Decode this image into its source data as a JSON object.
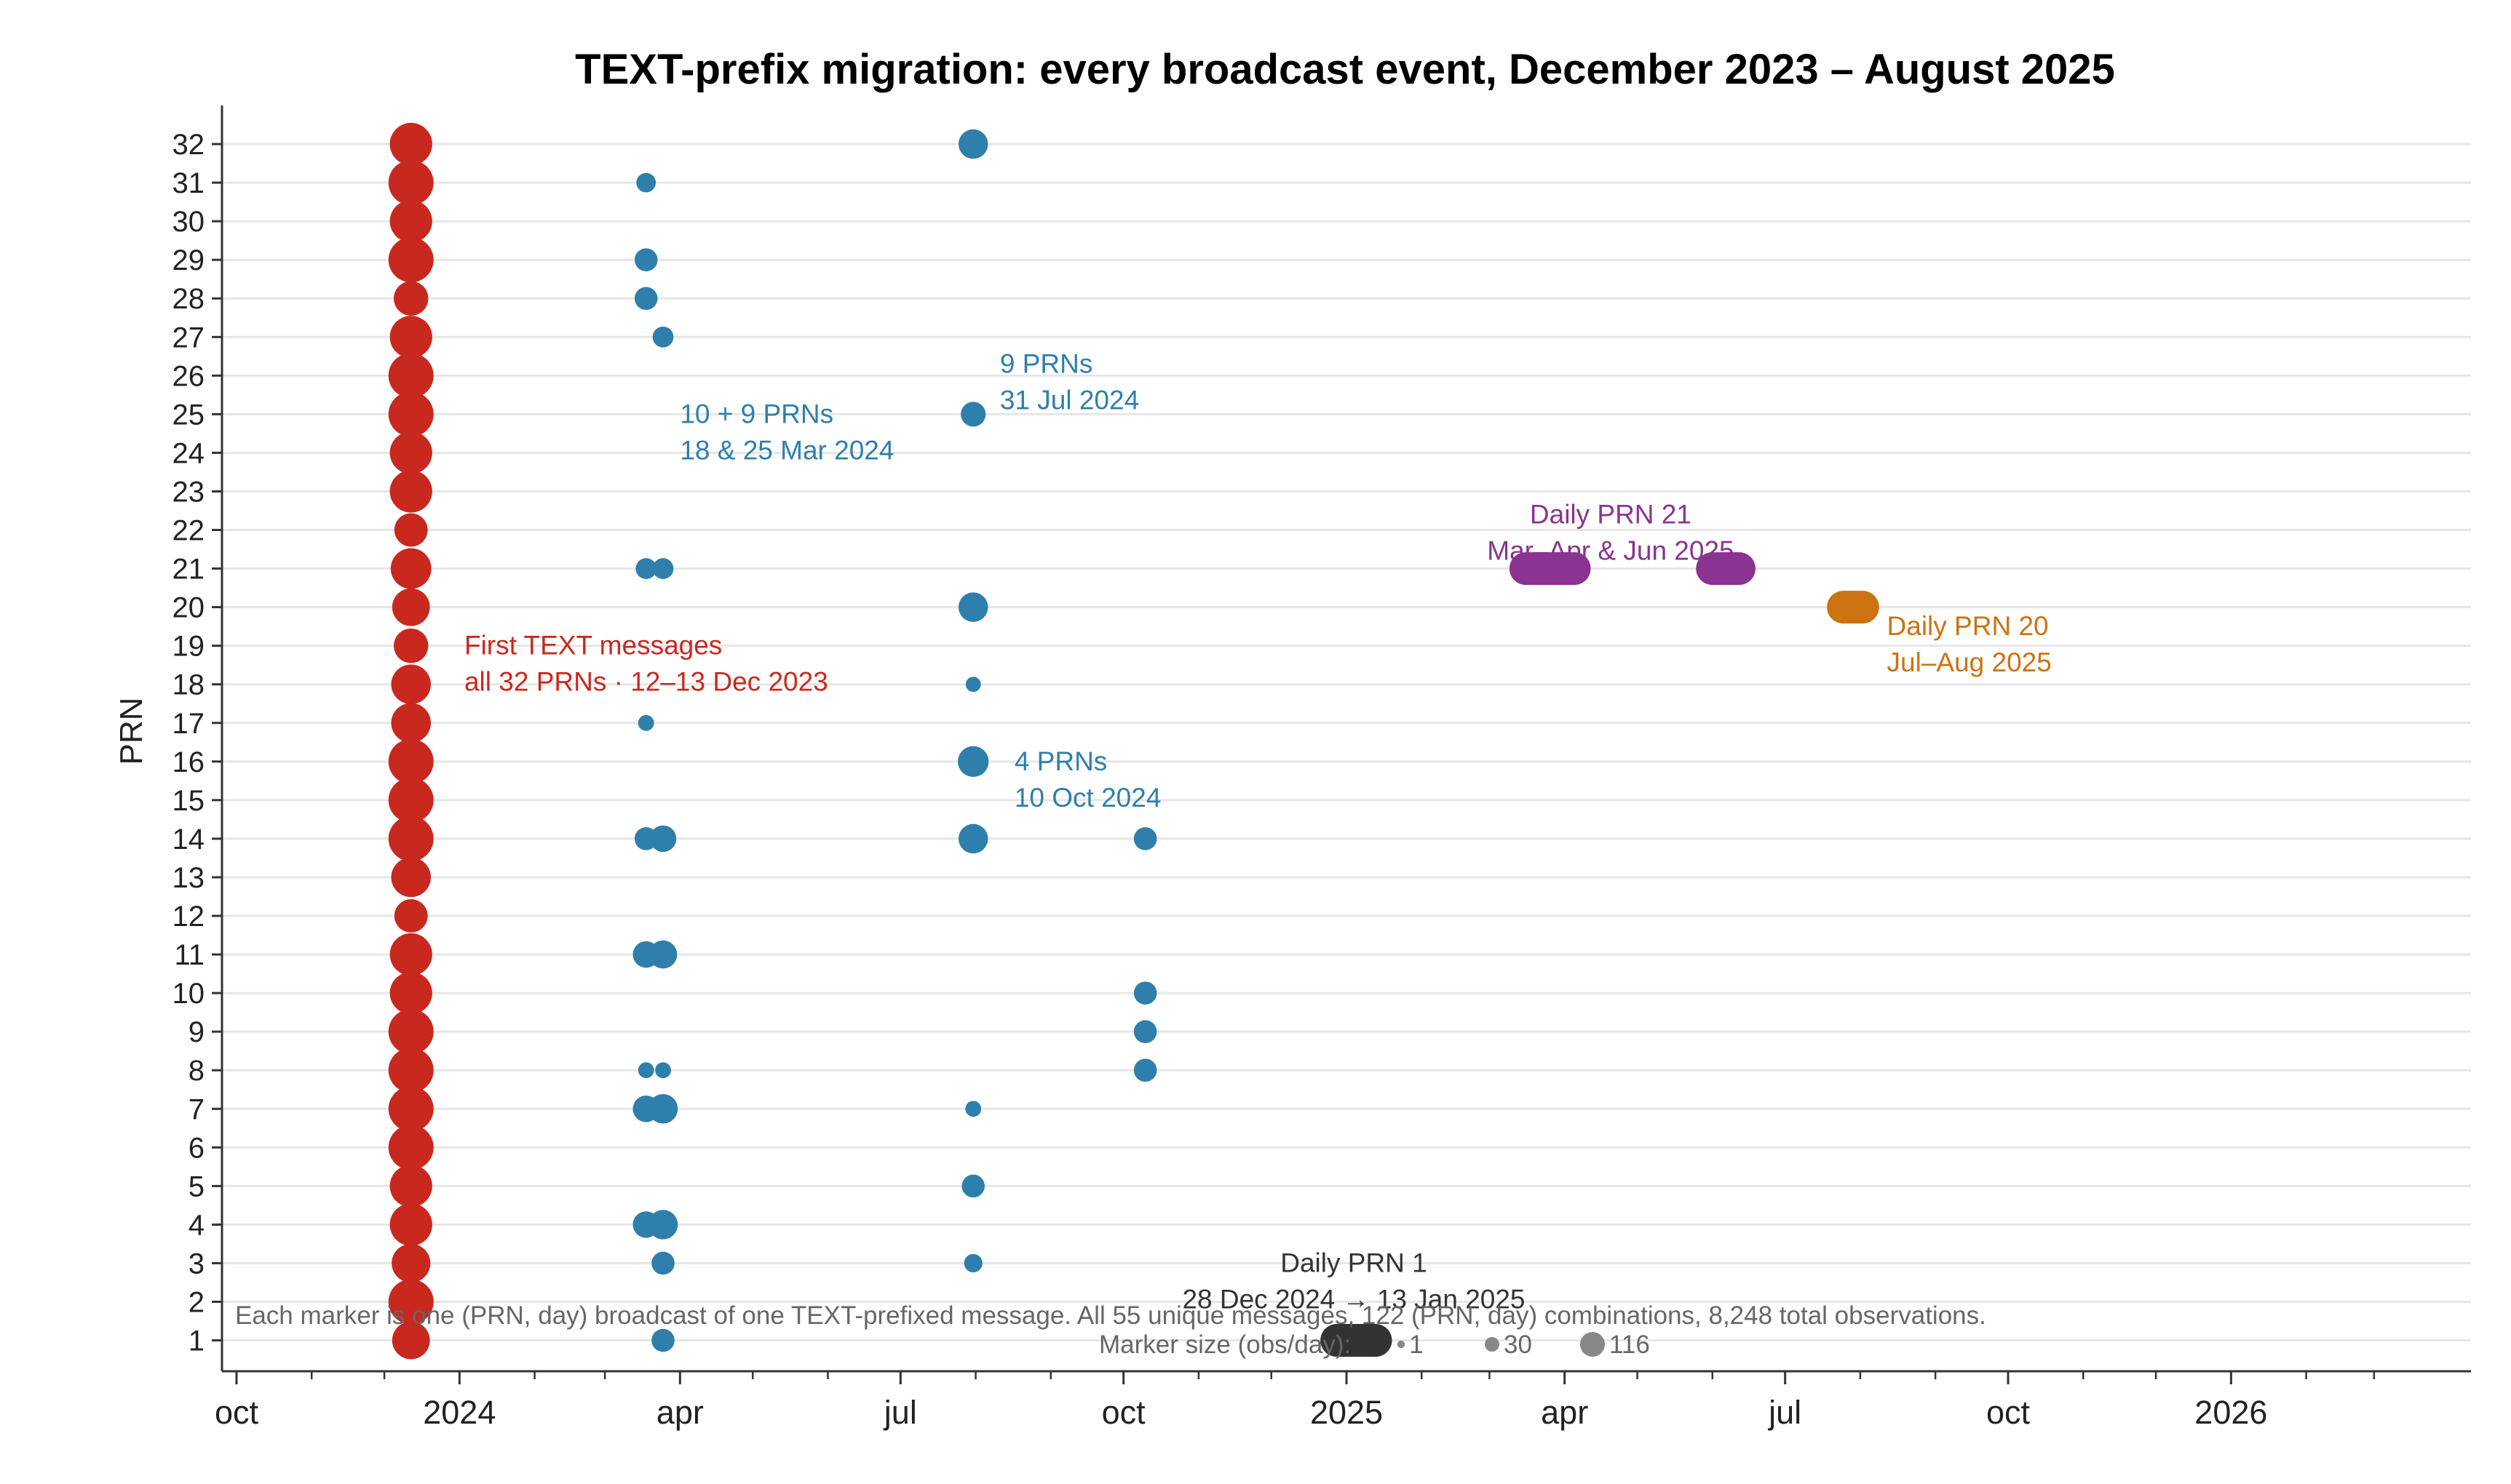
{
  "colors": {
    "initial": "#c9281f",
    "broadcast": "#2e7fab",
    "prn21": "#8a3390",
    "prn20": "#cc7210",
    "prn1": "#333333",
    "grid": "#e6e6e6",
    "axis": "#333333",
    "legend_marker": "#888888"
  },
  "chart_data": {
    "type": "scatter",
    "title": "TEXT-prefix migration: every broadcast event, December 2023 – August 2025",
    "xlabel": "",
    "ylabel": "PRN",
    "xlim": [
      "2023-09-25",
      "2026-04-10"
    ],
    "ylim": [
      0.2,
      33
    ],
    "y_ticks": [
      1,
      2,
      3,
      4,
      5,
      6,
      7,
      8,
      9,
      10,
      11,
      12,
      13,
      14,
      15,
      16,
      17,
      18,
      19,
      20,
      21,
      22,
      23,
      24,
      25,
      26,
      27,
      28,
      29,
      30,
      31,
      32
    ],
    "x_major_ticks": [
      {
        "date": "2023-10-01",
        "label": "oct"
      },
      {
        "date": "2024-01-01",
        "label": "2024"
      },
      {
        "date": "2024-04-01",
        "label": "apr"
      },
      {
        "date": "2024-07-01",
        "label": "jul"
      },
      {
        "date": "2024-10-01",
        "label": "oct"
      },
      {
        "date": "2025-01-01",
        "label": "2025"
      },
      {
        "date": "2025-04-01",
        "label": "apr"
      },
      {
        "date": "2025-07-01",
        "label": "jul"
      },
      {
        "date": "2025-10-01",
        "label": "oct"
      },
      {
        "date": "2026-01-01",
        "label": "2026"
      }
    ],
    "x_minor_ticks": [
      "2023-11-01",
      "2023-12-01",
      "2024-02-01",
      "2024-03-01",
      "2024-05-01",
      "2024-06-01",
      "2024-08-01",
      "2024-09-01",
      "2024-11-01",
      "2024-12-01",
      "2025-02-01",
      "2025-03-01",
      "2025-05-01",
      "2025-06-01",
      "2025-08-01",
      "2025-09-01",
      "2025-11-01",
      "2025-12-01",
      "2026-02-01",
      "2026-03-01"
    ],
    "grid": "horizontal",
    "series": [
      {
        "key": "initial",
        "points": [
          {
            "date": "2023-12-12",
            "prn": 32,
            "obs": 100
          },
          {
            "date": "2023-12-12",
            "prn": 31,
            "obs": 116
          },
          {
            "date": "2023-12-12",
            "prn": 30,
            "obs": 100
          },
          {
            "date": "2023-12-12",
            "prn": 29,
            "obs": 116
          },
          {
            "date": "2023-12-12",
            "prn": 28,
            "obs": 60
          },
          {
            "date": "2023-12-12",
            "prn": 27,
            "obs": 100
          },
          {
            "date": "2023-12-12",
            "prn": 26,
            "obs": 116
          },
          {
            "date": "2023-12-12",
            "prn": 25,
            "obs": 116
          },
          {
            "date": "2023-12-12",
            "prn": 24,
            "obs": 100
          },
          {
            "date": "2023-12-12",
            "prn": 23,
            "obs": 100
          },
          {
            "date": "2023-12-12",
            "prn": 22,
            "obs": 55
          },
          {
            "date": "2023-12-12",
            "prn": 21,
            "obs": 90
          },
          {
            "date": "2023-12-12",
            "prn": 20,
            "obs": 75
          },
          {
            "date": "2023-12-12",
            "prn": 19,
            "obs": 60
          },
          {
            "date": "2023-12-12",
            "prn": 18,
            "obs": 85
          },
          {
            "date": "2023-12-12",
            "prn": 17,
            "obs": 85
          },
          {
            "date": "2023-12-12",
            "prn": 16,
            "obs": 116
          },
          {
            "date": "2023-12-12",
            "prn": 15,
            "obs": 116
          },
          {
            "date": "2023-12-12",
            "prn": 14,
            "obs": 116
          },
          {
            "date": "2023-12-12",
            "prn": 13,
            "obs": 85
          },
          {
            "date": "2023-12-12",
            "prn": 12,
            "obs": 55
          },
          {
            "date": "2023-12-12",
            "prn": 11,
            "obs": 100
          },
          {
            "date": "2023-12-12",
            "prn": 10,
            "obs": 100
          },
          {
            "date": "2023-12-12",
            "prn": 9,
            "obs": 116
          },
          {
            "date": "2023-12-12",
            "prn": 8,
            "obs": 116
          },
          {
            "date": "2023-12-12",
            "prn": 7,
            "obs": 116
          },
          {
            "date": "2023-12-12",
            "prn": 6,
            "obs": 116
          },
          {
            "date": "2023-12-12",
            "prn": 5,
            "obs": 100
          },
          {
            "date": "2023-12-12",
            "prn": 4,
            "obs": 100
          },
          {
            "date": "2023-12-12",
            "prn": 3,
            "obs": 80
          },
          {
            "date": "2023-12-12",
            "prn": 2,
            "obs": 116
          },
          {
            "date": "2023-12-12",
            "prn": 1,
            "obs": 75
          }
        ]
      },
      {
        "key": "broadcast",
        "points": [
          {
            "date": "2024-03-18",
            "prn": 31,
            "obs": 12
          },
          {
            "date": "2024-03-18",
            "prn": 29,
            "obs": 20
          },
          {
            "date": "2024-03-18",
            "prn": 28,
            "obs": 20
          },
          {
            "date": "2024-03-25",
            "prn": 27,
            "obs": 15
          },
          {
            "date": "2024-03-18",
            "prn": 21,
            "obs": 15
          },
          {
            "date": "2024-03-25",
            "prn": 21,
            "obs": 15
          },
          {
            "date": "2024-03-18",
            "prn": 17,
            "obs": 6
          },
          {
            "date": "2024-03-18",
            "prn": 14,
            "obs": 20
          },
          {
            "date": "2024-03-25",
            "prn": 14,
            "obs": 30
          },
          {
            "date": "2024-03-18",
            "prn": 11,
            "obs": 30
          },
          {
            "date": "2024-03-25",
            "prn": 11,
            "obs": 35
          },
          {
            "date": "2024-03-18",
            "prn": 8,
            "obs": 6
          },
          {
            "date": "2024-03-25",
            "prn": 8,
            "obs": 6
          },
          {
            "date": "2024-03-18",
            "prn": 7,
            "obs": 30
          },
          {
            "date": "2024-03-25",
            "prn": 7,
            "obs": 40
          },
          {
            "date": "2024-03-18",
            "prn": 4,
            "obs": 30
          },
          {
            "date": "2024-03-25",
            "prn": 4,
            "obs": 40
          },
          {
            "date": "2024-03-25",
            "prn": 3,
            "obs": 20
          },
          {
            "date": "2024-03-25",
            "prn": 1,
            "obs": 20
          },
          {
            "date": "2024-07-31",
            "prn": 32,
            "obs": 40
          },
          {
            "date": "2024-07-31",
            "prn": 25,
            "obs": 25
          },
          {
            "date": "2024-07-31",
            "prn": 20,
            "obs": 40
          },
          {
            "date": "2024-07-31",
            "prn": 18,
            "obs": 5
          },
          {
            "date": "2024-07-31",
            "prn": 16,
            "obs": 45
          },
          {
            "date": "2024-07-31",
            "prn": 14,
            "obs": 40
          },
          {
            "date": "2024-07-31",
            "prn": 7,
            "obs": 6
          },
          {
            "date": "2024-07-31",
            "prn": 5,
            "obs": 20
          },
          {
            "date": "2024-07-31",
            "prn": 3,
            "obs": 10
          },
          {
            "date": "2024-10-10",
            "prn": 14,
            "obs": 20
          },
          {
            "date": "2024-10-10",
            "prn": 10,
            "obs": 20
          },
          {
            "date": "2024-10-10",
            "prn": 9,
            "obs": 20
          },
          {
            "date": "2024-10-10",
            "prn": 8,
            "obs": 20
          }
        ]
      },
      {
        "key": "prn21",
        "daily_ranges": [
          {
            "prn": 21,
            "start": "2025-03-16",
            "end": "2025-04-05",
            "obs": 60
          },
          {
            "prn": 21,
            "start": "2025-06-01",
            "end": "2025-06-12",
            "obs": 60
          }
        ]
      },
      {
        "key": "prn20",
        "daily_ranges": [
          {
            "prn": 20,
            "start": "2025-07-25",
            "end": "2025-08-02",
            "obs": 60
          }
        ]
      },
      {
        "key": "prn1",
        "daily_ranges": [
          {
            "prn": 1,
            "start": "2024-12-28",
            "end": "2025-01-13",
            "obs": 60
          }
        ]
      }
    ],
    "annotations": [
      {
        "key": "initial",
        "lines": [
          "First TEXT messages",
          "all 32 PRNs · 12–13 Dec 2023"
        ]
      },
      {
        "key": "broadcast",
        "lines": [
          "10 + 9 PRNs",
          "18 & 25 Mar 2024"
        ]
      },
      {
        "key": "broadcast",
        "lines": [
          "9 PRNs",
          "31 Jul 2024"
        ]
      },
      {
        "key": "broadcast",
        "lines": [
          "4 PRNs",
          "10 Oct 2024"
        ]
      },
      {
        "key": "prn21",
        "lines": [
          "Daily PRN 21",
          "Mar–Apr & Jun 2025"
        ]
      },
      {
        "key": "prn20",
        "lines": [
          "Daily PRN 20",
          "Jul–Aug 2025"
        ]
      },
      {
        "key": "prn1",
        "lines": [
          "Daily PRN 1",
          "28 Dec 2024 → 13 Jan 2025"
        ]
      }
    ],
    "footnote": "Each marker is one (PRN, day) broadcast of one TEXT-prefixed message. All 55 unique messages, 122 (PRN, day) combinations, 8,248 total observations.",
    "size_legend": {
      "label": "Marker size (obs/day):",
      "entries": [
        {
          "obs": 1,
          "label": "1"
        },
        {
          "obs": 30,
          "label": "30"
        },
        {
          "obs": 116,
          "label": "116"
        }
      ]
    }
  }
}
